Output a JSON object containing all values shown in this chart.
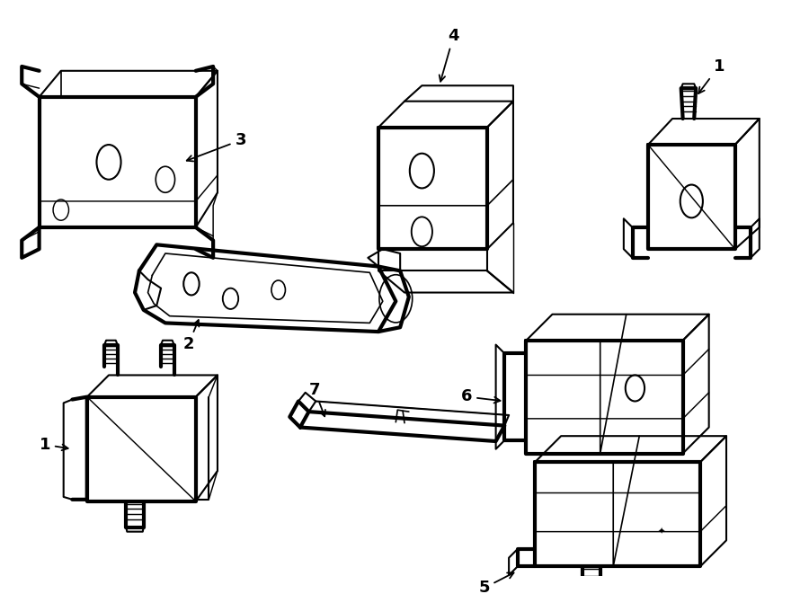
{
  "bg_color": "#ffffff",
  "line_color": "#000000",
  "line_width": 1.5
}
